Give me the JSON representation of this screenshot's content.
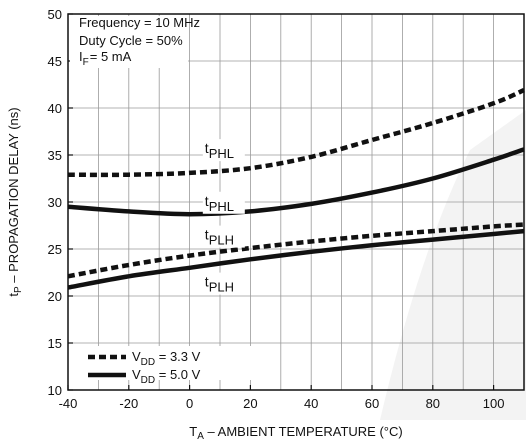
{
  "colors": {
    "line": "#111111",
    "grid": "#9a9a9a",
    "background": "#ffffff",
    "watermark": "#f2f2f2"
  },
  "conditions": [
    "Frequency = 10 MHz",
    "Duty Cycle = 50%",
    {
      "main": "I",
      "sub": "F",
      "rest": "= 5 mA"
    }
  ],
  "legend": [
    {
      "prefix": "V",
      "sub": "DD",
      "rest": " = 3.3 V",
      "style": "dashed"
    },
    {
      "prefix": "V",
      "sub": "DD",
      "rest": " = 5.0 V",
      "style": "solid"
    }
  ],
  "chart_data": {
    "type": "line",
    "title": "",
    "xlabel": {
      "main": "T",
      "sub": "A",
      "rest": " – AMBIENT TEMPERATURE (°C)"
    },
    "ylabel": {
      "main": "t",
      "sub": "P",
      "rest": " – PROPAGATION DELAY (ns)"
    },
    "xlim": [
      -40,
      110
    ],
    "ylim": [
      10,
      50
    ],
    "xticks": [
      -40,
      -20,
      0,
      20,
      40,
      60,
      80,
      100
    ],
    "yticks": [
      10,
      15,
      20,
      25,
      30,
      35,
      40,
      45,
      50
    ],
    "grid": true,
    "legend_position": "bottom-left",
    "series": [
      {
        "name": "tPHL (VDD = 3.3 V)",
        "style": "dashed",
        "x": [
          -40,
          -20,
          0,
          20,
          40,
          60,
          80,
          100,
          110
        ],
        "y": [
          32.9,
          32.9,
          33.1,
          33.6,
          34.8,
          36.6,
          38.4,
          40.5,
          41.9
        ]
      },
      {
        "name": "tPHL (VDD = 5.0 V)",
        "style": "solid",
        "x": [
          -40,
          -20,
          0,
          20,
          40,
          60,
          80,
          100,
          110
        ],
        "y": [
          29.5,
          29.0,
          28.7,
          29.0,
          29.8,
          31.0,
          32.5,
          34.5,
          35.6
        ]
      },
      {
        "name": "tPLH (VDD = 3.3 V)",
        "style": "dashed",
        "x": [
          -40,
          -20,
          0,
          20,
          40,
          60,
          80,
          100,
          110
        ],
        "y": [
          22.1,
          23.3,
          24.3,
          25.1,
          25.8,
          26.4,
          26.9,
          27.4,
          27.6
        ]
      },
      {
        "name": "tPLH (VDD = 5.0 V)",
        "style": "solid",
        "x": [
          -40,
          -20,
          0,
          20,
          40,
          60,
          80,
          100,
          110
        ],
        "y": [
          20.9,
          22.1,
          23.0,
          23.9,
          24.7,
          25.4,
          26.0,
          26.6,
          26.9
        ]
      }
    ],
    "annotations": [
      {
        "main": "t",
        "sub": "PHL",
        "x": 5,
        "y": 35.2
      },
      {
        "main": "t",
        "sub": "PHL",
        "x": 5,
        "y": 29.6
      },
      {
        "main": "t",
        "sub": "PLH",
        "x": 5,
        "y": 26.0
      },
      {
        "main": "t",
        "sub": "PLH",
        "x": 5,
        "y": 21.0
      }
    ]
  }
}
